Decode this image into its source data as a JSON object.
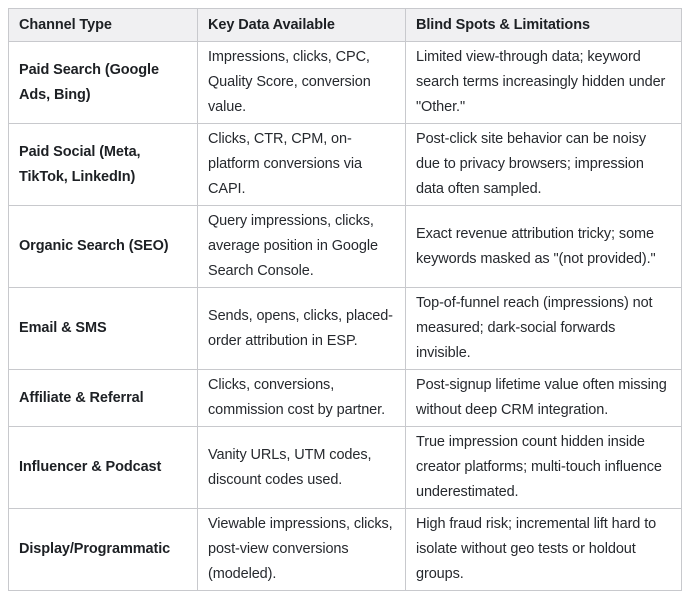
{
  "table": {
    "columns": [
      "Channel Type",
      "Key Data Available",
      "Blind Spots & Limitations"
    ],
    "rows": [
      {
        "channel": "Paid Search (Google Ads, Bing)",
        "key_data": "Impressions, clicks, CPC, Quality Score, conversion value.",
        "blind_spots": "Limited view-through data; keyword search terms increasingly hidden under \"Other.\""
      },
      {
        "channel": "Paid Social (Meta, TikTok, LinkedIn)",
        "key_data": "Clicks, CTR, CPM, on-platform conversions via CAPI.",
        "blind_spots": "Post-click site behavior can be noisy due to privacy browsers; impression data often sampled."
      },
      {
        "channel": "Organic Search (SEO)",
        "key_data": "Query impressions, clicks, average position in Google Search Console.",
        "blind_spots": "Exact revenue attribution tricky; some keywords masked as \"(not provided).\""
      },
      {
        "channel": "Email & SMS",
        "key_data": "Sends, opens, clicks, placed-order attribution in ESP.",
        "blind_spots": "Top-of-funnel reach (impressions) not measured; dark-social forwards invisible."
      },
      {
        "channel": "Affiliate & Referral",
        "key_data": "Clicks, conversions, commission cost by partner.",
        "blind_spots": "Post-signup lifetime value often missing without deep CRM integration."
      },
      {
        "channel": "Influencer & Podcast",
        "key_data": "Vanity URLs, UTM codes, discount codes used.",
        "blind_spots": "True impression count hidden inside creator platforms; multi-touch influence underestimated."
      },
      {
        "channel": "Display/Programmatic",
        "key_data": "Viewable impressions, clicks, post-view conversions (modeled).",
        "blind_spots": "High fraud risk; incremental lift hard to isolate without geo tests or holdout groups."
      }
    ]
  },
  "colors": {
    "header_bg": "#f0f0f2",
    "border": "#c8c9cd",
    "text": "#26292e"
  }
}
